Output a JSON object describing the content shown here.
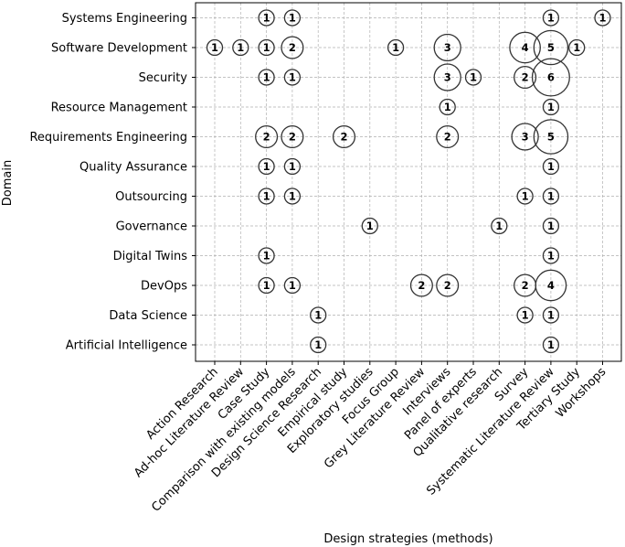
{
  "chart_data": {
    "type": "scatter",
    "xlabel": "Design strategies (methods)",
    "ylabel": "Domain",
    "grid": true,
    "x_categories": [
      "Action Research",
      "Ad-hoc Literature Review",
      "Case Study",
      "Comparison with existing models",
      "Design Science Research",
      "Empirical study",
      "Exploratory studies",
      "Focus Group",
      "Grey Literature Review",
      "Interviews",
      "Panel of experts",
      "Qualitative research",
      "Survey",
      "Systematic Literature Review",
      "Tertiary Study",
      "Workshops"
    ],
    "y_categories": [
      "Artificial Intelligence",
      "Data Science",
      "DevOps",
      "Digital Twins ",
      "Governance",
      "Outsourcing",
      "Quality Assurance",
      "Requirements Engineering",
      "Resource Management",
      "Security",
      "Software Development",
      "Systems Engineering"
    ],
    "points": [
      {
        "x": "Case Study",
        "y": "Systems Engineering",
        "value": 1
      },
      {
        "x": "Comparison with existing models",
        "y": "Systems Engineering",
        "value": 1
      },
      {
        "x": "Systematic Literature Review",
        "y": "Systems Engineering",
        "value": 1
      },
      {
        "x": "Workshops",
        "y": "Systems Engineering",
        "value": 1
      },
      {
        "x": "Action Research",
        "y": "Software Development",
        "value": 1
      },
      {
        "x": "Ad-hoc Literature Review",
        "y": "Software Development",
        "value": 1
      },
      {
        "x": "Case Study",
        "y": "Software Development",
        "value": 1
      },
      {
        "x": "Comparison with existing models",
        "y": "Software Development",
        "value": 2
      },
      {
        "x": "Focus Group",
        "y": "Software Development",
        "value": 1
      },
      {
        "x": "Interviews",
        "y": "Software Development",
        "value": 3
      },
      {
        "x": "Survey",
        "y": "Software Development",
        "value": 4
      },
      {
        "x": "Systematic Literature Review",
        "y": "Software Development",
        "value": 5
      },
      {
        "x": "Tertiary Study",
        "y": "Software Development",
        "value": 1
      },
      {
        "x": "Case Study",
        "y": "Security",
        "value": 1
      },
      {
        "x": "Comparison with existing models",
        "y": "Security",
        "value": 1
      },
      {
        "x": "Interviews",
        "y": "Security",
        "value": 3
      },
      {
        "x": "Panel of experts",
        "y": "Security",
        "value": 1
      },
      {
        "x": "Survey",
        "y": "Security",
        "value": 2
      },
      {
        "x": "Systematic Literature Review",
        "y": "Security",
        "value": 6
      },
      {
        "x": "Interviews",
        "y": "Resource Management",
        "value": 1
      },
      {
        "x": "Systematic Literature Review",
        "y": "Resource Management",
        "value": 1
      },
      {
        "x": "Case Study",
        "y": "Requirements Engineering",
        "value": 2
      },
      {
        "x": "Comparison with existing models",
        "y": "Requirements Engineering",
        "value": 2
      },
      {
        "x": "Empirical study",
        "y": "Requirements Engineering",
        "value": 2
      },
      {
        "x": "Interviews",
        "y": "Requirements Engineering",
        "value": 2
      },
      {
        "x": "Survey",
        "y": "Requirements Engineering",
        "value": 3
      },
      {
        "x": "Systematic Literature Review",
        "y": "Requirements Engineering",
        "value": 5
      },
      {
        "x": "Case Study",
        "y": "Quality Assurance",
        "value": 1
      },
      {
        "x": "Comparison with existing models",
        "y": "Quality Assurance",
        "value": 1
      },
      {
        "x": "Systematic Literature Review",
        "y": "Quality Assurance",
        "value": 1
      },
      {
        "x": "Case Study",
        "y": "Outsourcing",
        "value": 1
      },
      {
        "x": "Comparison with existing models",
        "y": "Outsourcing",
        "value": 1
      },
      {
        "x": "Survey",
        "y": "Outsourcing",
        "value": 1
      },
      {
        "x": "Systematic Literature Review",
        "y": "Outsourcing",
        "value": 1
      },
      {
        "x": "Exploratory studies",
        "y": "Governance",
        "value": 1
      },
      {
        "x": "Qualitative research",
        "y": "Governance",
        "value": 1
      },
      {
        "x": "Systematic Literature Review",
        "y": "Governance",
        "value": 1
      },
      {
        "x": "Case Study",
        "y": "Digital Twins ",
        "value": 1
      },
      {
        "x": "Systematic Literature Review",
        "y": "Digital Twins ",
        "value": 1
      },
      {
        "x": "Case Study",
        "y": "DevOps",
        "value": 1
      },
      {
        "x": "Comparison with existing models",
        "y": "DevOps",
        "value": 1
      },
      {
        "x": "Grey Literature Review",
        "y": "DevOps",
        "value": 2
      },
      {
        "x": "Interviews",
        "y": "DevOps",
        "value": 2
      },
      {
        "x": "Survey",
        "y": "DevOps",
        "value": 2
      },
      {
        "x": "Systematic Literature Review",
        "y": "DevOps",
        "value": 4
      },
      {
        "x": "Design Science Research",
        "y": "Data Science",
        "value": 1
      },
      {
        "x": "Survey",
        "y": "Data Science",
        "value": 1
      },
      {
        "x": "Systematic Literature Review",
        "y": "Data Science",
        "value": 1
      },
      {
        "x": "Design Science Research",
        "y": "Artificial Intelligence",
        "value": 1
      },
      {
        "x": "Systematic Literature Review",
        "y": "Artificial Intelligence",
        "value": 1
      }
    ]
  }
}
